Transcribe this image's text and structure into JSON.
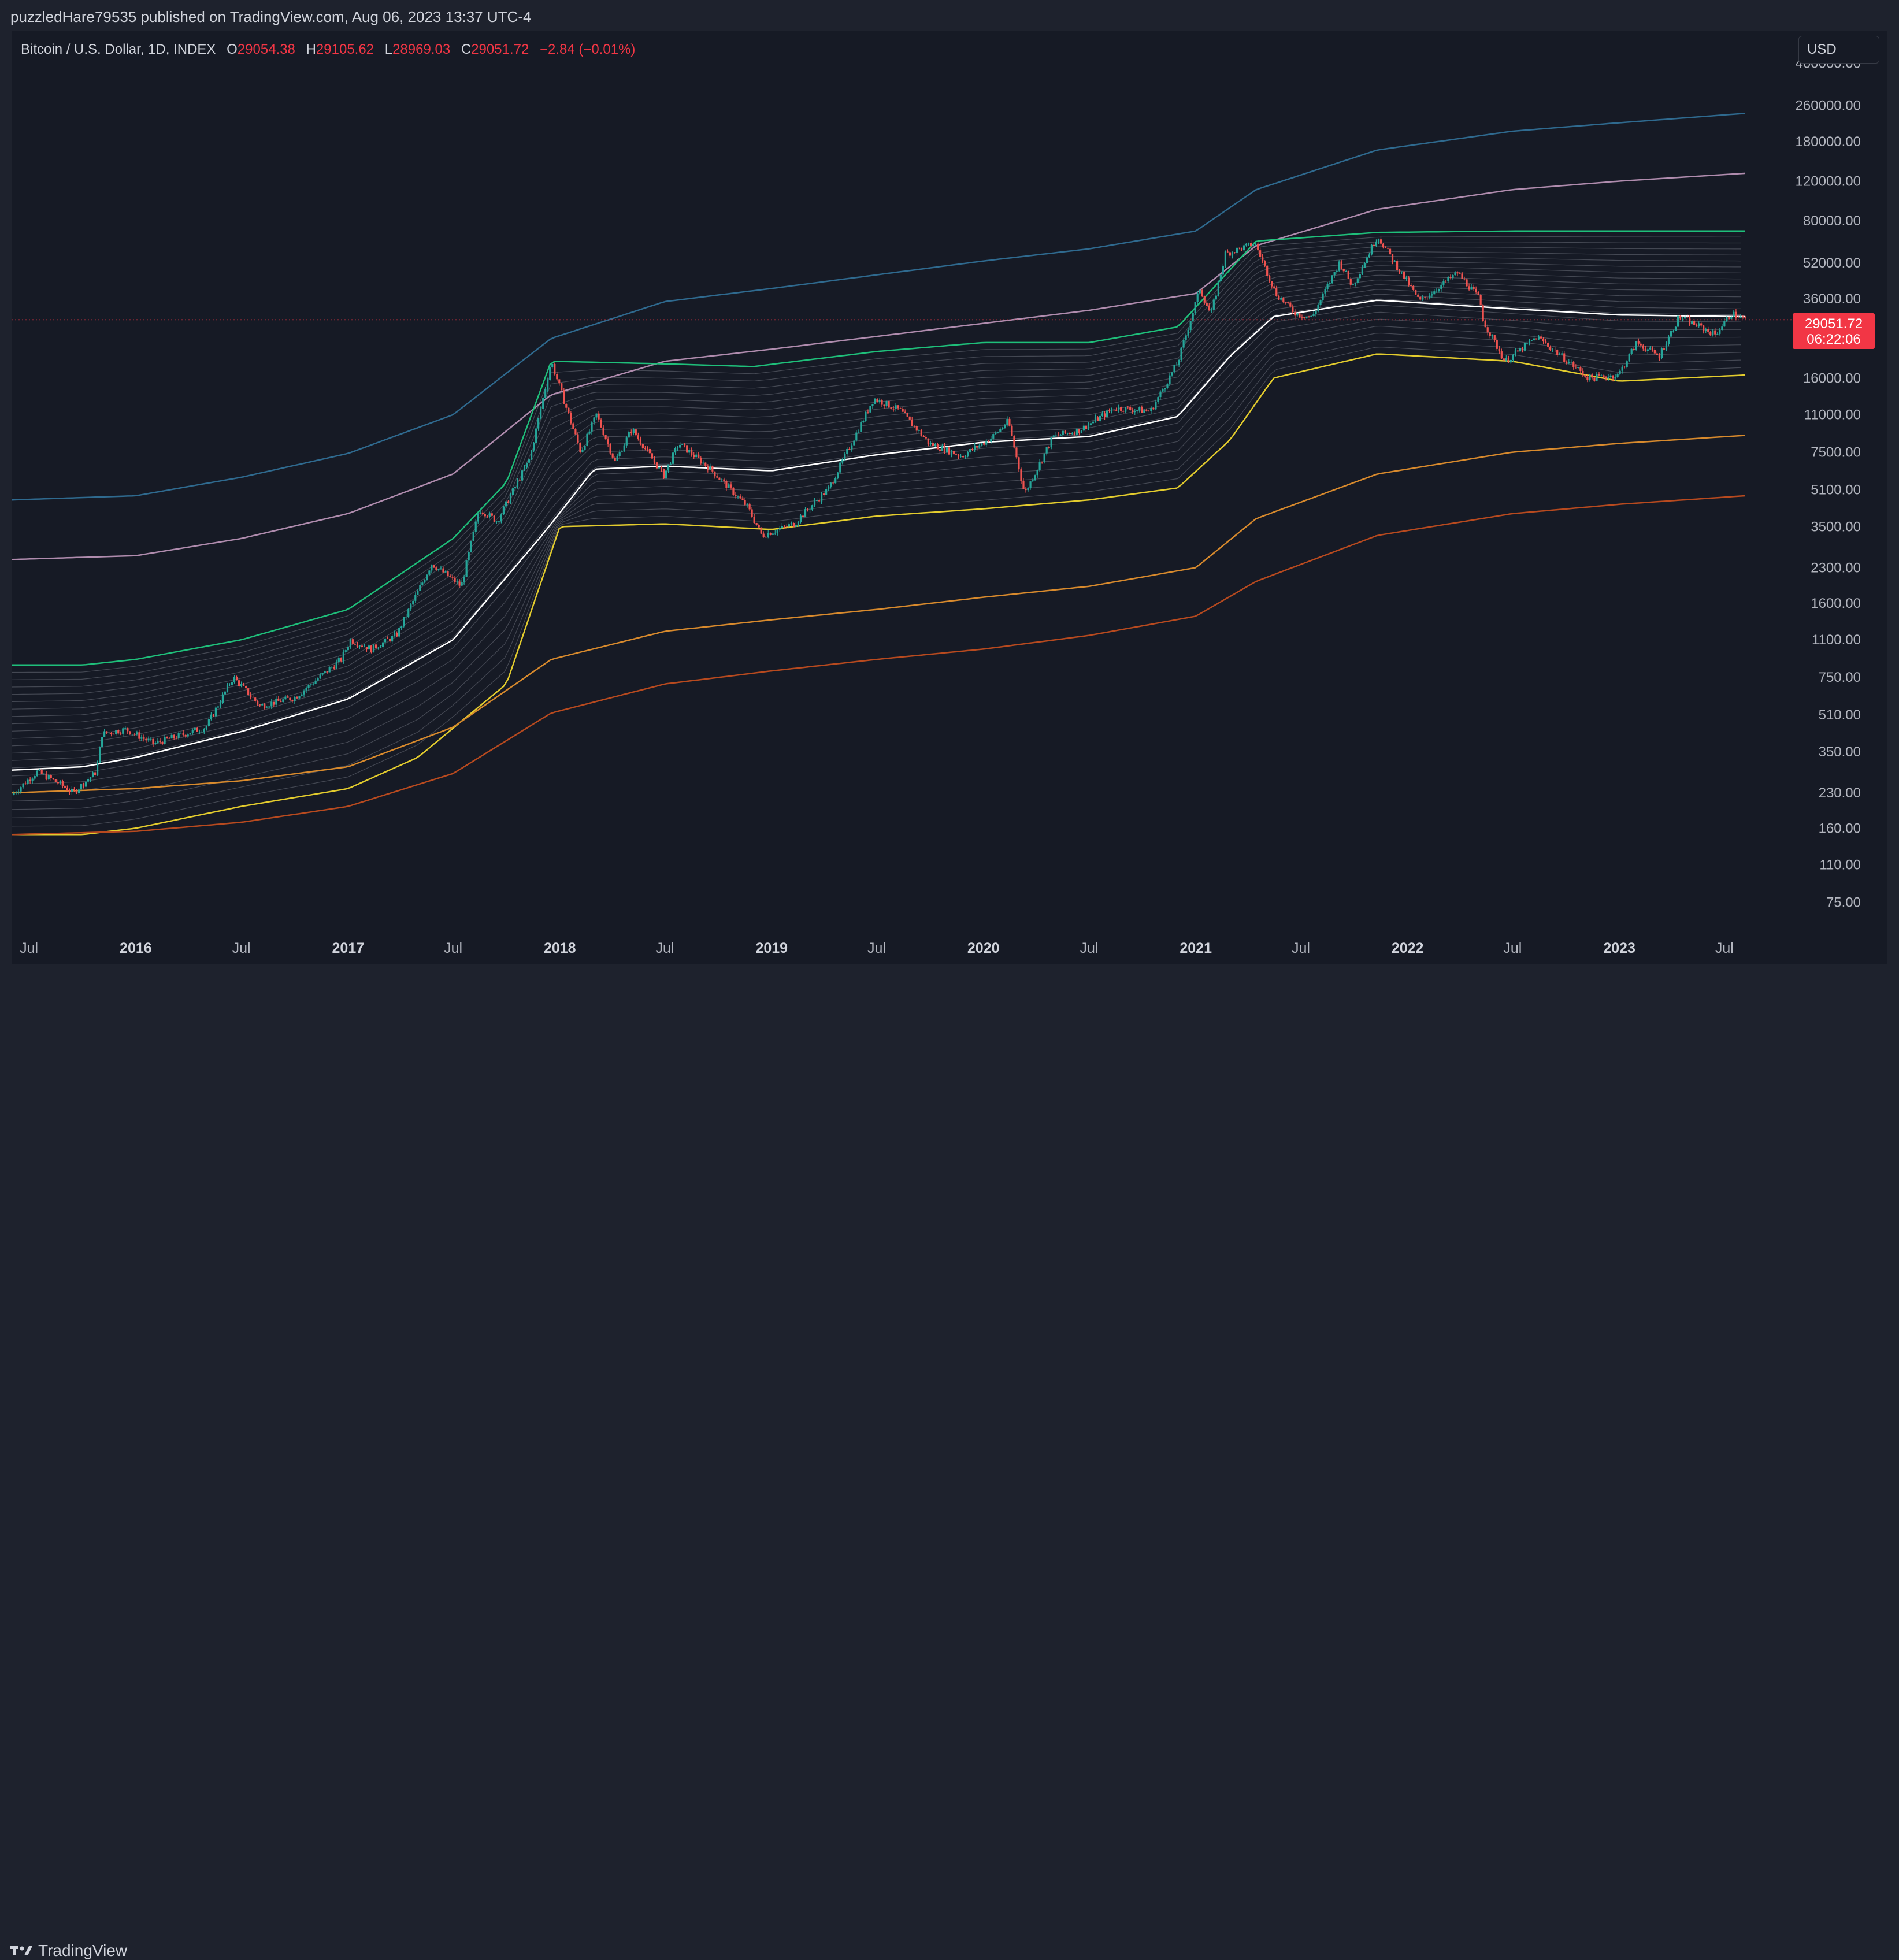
{
  "header": {
    "published_text": "puzzledHare79535 published on TradingView.com, Aug 06, 2023 13:37 UTC-4"
  },
  "legend": {
    "symbol": "Bitcoin / U.S. Dollar, 1D, INDEX",
    "open_key": "O",
    "open": "29054.38",
    "high_key": "H",
    "high": "29105.62",
    "low_key": "L",
    "low": "28969.03",
    "close_key": "C",
    "close": "29051.72",
    "change": "−2.84 (−0.01%)"
  },
  "currency_button": "USD",
  "price_label": {
    "price": "29051.72",
    "countdown": "06:22:06"
  },
  "footer": {
    "brand": "TradingView"
  },
  "colors": {
    "background": "#161a25",
    "up": "#26a69a",
    "down": "#ef5350",
    "price_line": "#f23645",
    "band_top": "#1fbf7a",
    "band_mid": "#ffffff",
    "band_low": "#e3cc2e",
    "line_blue": "#2f6a8f",
    "line_pink": "#b08cae",
    "line_orange": "#d88a2d",
    "line_red": "#b84a1f"
  },
  "chart_data": {
    "type": "line",
    "title": "",
    "yscale": "log",
    "ylim": [
      55,
      500000
    ],
    "x_range": [
      "2015-06-01",
      "2023-08-06"
    ],
    "y_ticks": [
      400000,
      260000,
      180000,
      120000,
      80000,
      52000,
      36000,
      16000,
      11000,
      7500,
      5100,
      3500,
      2300,
      1600,
      1100,
      750,
      510,
      350,
      230,
      160,
      110,
      75
    ],
    "y_tick_labels": [
      "400000.00",
      "260000.00",
      "180000.00",
      "120000.00",
      "80000.00",
      "52000.00",
      "36000.00",
      "16000.00",
      "11000.00",
      "7500.00",
      "5100.00",
      "3500.00",
      "2300.00",
      "1600.00",
      "1100.00",
      "750.00",
      "510.00",
      "350.00",
      "230.00",
      "160.00",
      "110.00",
      "75.00"
    ],
    "x_ticks": [
      {
        "date": "2015-07-01",
        "label": "Jul",
        "bold": false
      },
      {
        "date": "2016-01-01",
        "label": "2016",
        "bold": true
      },
      {
        "date": "2016-07-01",
        "label": "Jul",
        "bold": false
      },
      {
        "date": "2017-01-01",
        "label": "2017",
        "bold": true
      },
      {
        "date": "2017-07-01",
        "label": "Jul",
        "bold": false
      },
      {
        "date": "2018-01-01",
        "label": "2018",
        "bold": true
      },
      {
        "date": "2018-07-01",
        "label": "Jul",
        "bold": false
      },
      {
        "date": "2019-01-01",
        "label": "2019",
        "bold": true
      },
      {
        "date": "2019-07-01",
        "label": "Jul",
        "bold": false
      },
      {
        "date": "2020-01-01",
        "label": "2020",
        "bold": true
      },
      {
        "date": "2020-07-01",
        "label": "Jul",
        "bold": false
      },
      {
        "date": "2021-01-01",
        "label": "2021",
        "bold": true
      },
      {
        "date": "2021-07-01",
        "label": "Jul",
        "bold": false
      },
      {
        "date": "2022-01-01",
        "label": "2022",
        "bold": true
      },
      {
        "date": "2022-07-01",
        "label": "Jul",
        "bold": false
      },
      {
        "date": "2023-01-01",
        "label": "2023",
        "bold": true
      },
      {
        "date": "2023-07-01",
        "label": "Jul",
        "bold": false
      }
    ],
    "last_price": 29051.72,
    "price": {
      "x": [
        "2015-06-01",
        "2015-07-15",
        "2015-08-20",
        "2015-09-15",
        "2015-10-25",
        "2015-11-04",
        "2015-12-15",
        "2016-02-01",
        "2016-05-01",
        "2016-06-17",
        "2016-08-02",
        "2016-10-01",
        "2016-12-20",
        "2017-01-05",
        "2017-02-10",
        "2017-03-25",
        "2017-05-25",
        "2017-07-15",
        "2017-08-15",
        "2017-09-15",
        "2017-11-10",
        "2017-12-17",
        "2018-02-06",
        "2018-03-05",
        "2018-04-06",
        "2018-05-05",
        "2018-06-29",
        "2018-07-25",
        "2018-09-15",
        "2018-11-20",
        "2018-12-15",
        "2019-02-08",
        "2019-04-10",
        "2019-06-26",
        "2019-08-10",
        "2019-09-30",
        "2019-11-25",
        "2020-01-15",
        "2020-02-13",
        "2020-03-12",
        "2020-04-30",
        "2020-06-15",
        "2020-08-15",
        "2020-10-15",
        "2020-12-01",
        "2021-01-08",
        "2021-01-27",
        "2021-02-21",
        "2021-04-13",
        "2021-05-19",
        "2021-06-22",
        "2021-07-20",
        "2021-09-06",
        "2021-09-28",
        "2021-11-10",
        "2022-01-22",
        "2022-03-28",
        "2022-05-05",
        "2022-05-12",
        "2022-06-18",
        "2022-08-12",
        "2022-09-30",
        "2022-11-09",
        "2022-12-30",
        "2023-01-31",
        "2023-03-10",
        "2023-04-14",
        "2023-05-20",
        "2023-06-15",
        "2023-07-13",
        "2023-08-06"
      ],
      "y": [
        225,
        285,
        255,
        230,
        285,
        420,
        440,
        380,
        450,
        750,
        560,
        610,
        900,
        1100,
        1000,
        1150,
        2400,
        1900,
        4200,
        3700,
        7000,
        19000,
        7500,
        11000,
        6800,
        9500,
        5900,
        8200,
        6400,
        4300,
        3200,
        3600,
        5200,
        13000,
        11500,
        8200,
        7200,
        8700,
        10300,
        4900,
        8800,
        9400,
        11800,
        11400,
        18800,
        40000,
        30500,
        57000,
        63500,
        38000,
        31000,
        29700,
        52500,
        41000,
        68500,
        35000,
        47000,
        36000,
        28500,
        18900,
        24400,
        19400,
        16000,
        16500,
        23000,
        20000,
        30000,
        27000,
        25000,
        31000,
        29050
      ]
    },
    "series": [
      {
        "name": "",
        "color_key": "line_blue",
        "x": [
          "2015-06-01",
          "2016-01-01",
          "2016-07-01",
          "2017-01-01",
          "2017-07-01",
          "2017-12-17",
          "2018-07-01",
          "2019-01-01",
          "2019-07-01",
          "2020-01-01",
          "2020-07-01",
          "2021-01-01",
          "2021-04-15",
          "2021-11-10",
          "2022-07-01",
          "2023-01-01",
          "2023-08-06"
        ],
        "y": [
          4600,
          4800,
          5800,
          7400,
          11000,
          24000,
          35000,
          40000,
          46000,
          53000,
          60000,
          72000,
          110000,
          165000,
          200000,
          218000,
          240000
        ]
      },
      {
        "name": "",
        "color_key": "line_pink",
        "x": [
          "2015-06-01",
          "2016-01-01",
          "2016-07-01",
          "2017-01-01",
          "2017-07-01",
          "2017-12-17",
          "2018-07-01",
          "2019-01-01",
          "2019-07-01",
          "2020-01-01",
          "2020-07-01",
          "2021-01-01",
          "2021-04-15",
          "2021-11-10",
          "2022-07-01",
          "2023-01-01",
          "2023-08-06"
        ],
        "y": [
          2500,
          2600,
          3100,
          4000,
          6000,
          13500,
          19000,
          21500,
          24500,
          28000,
          32000,
          38000,
          62000,
          90000,
          110000,
          120000,
          130000
        ]
      },
      {
        "name": "",
        "color_key": "band_top",
        "x": [
          "2015-06-01",
          "2015-10-01",
          "2016-01-01",
          "2016-07-01",
          "2017-01-01",
          "2017-07-01",
          "2017-10-01",
          "2017-12-17",
          "2018-07-01",
          "2018-12-01",
          "2019-07-01",
          "2020-01-01",
          "2020-07-01",
          "2020-12-01",
          "2021-04-15",
          "2021-11-10",
          "2022-07-01",
          "2023-01-01",
          "2023-08-06"
        ],
        "y": [
          850,
          850,
          900,
          1100,
          1500,
          3100,
          5500,
          19000,
          18500,
          18000,
          21000,
          23000,
          23000,
          27000,
          65000,
          71000,
          72000,
          72000,
          72000
        ]
      },
      {
        "name": "",
        "color_key": "band_mid",
        "x": [
          "2015-06-01",
          "2015-10-01",
          "2016-01-01",
          "2016-07-01",
          "2017-01-01",
          "2017-07-01",
          "2017-12-01",
          "2018-03-01",
          "2018-07-01",
          "2019-01-01",
          "2019-07-01",
          "2020-01-01",
          "2020-07-01",
          "2020-12-01",
          "2021-03-01",
          "2021-05-15",
          "2021-11-10",
          "2022-07-01",
          "2023-01-01",
          "2023-08-06"
        ],
        "y": [
          290,
          300,
          330,
          430,
          600,
          1100,
          3200,
          6300,
          6500,
          6200,
          7300,
          8300,
          8800,
          10800,
          20000,
          30000,
          35500,
          32500,
          30500,
          30000
        ]
      },
      {
        "name": "",
        "color_key": "band_low",
        "x": [
          "2015-06-01",
          "2015-10-01",
          "2016-01-01",
          "2016-07-01",
          "2017-01-01",
          "2017-05-01",
          "2017-10-01",
          "2018-01-01",
          "2018-07-01",
          "2019-01-01",
          "2019-07-01",
          "2020-01-01",
          "2020-07-01",
          "2020-12-01",
          "2021-03-01",
          "2021-05-15",
          "2021-11-10",
          "2022-07-01",
          "2023-01-01",
          "2023-08-06"
        ],
        "y": [
          150,
          150,
          160,
          200,
          240,
          330,
          700,
          3500,
          3600,
          3400,
          3900,
          4200,
          4600,
          5200,
          8500,
          16000,
          20500,
          19000,
          15500,
          16500
        ]
      },
      {
        "name": "",
        "color_key": "line_orange",
        "x": [
          "2015-06-01",
          "2016-01-01",
          "2016-07-01",
          "2017-01-01",
          "2017-07-01",
          "2017-12-17",
          "2018-07-01",
          "2019-01-01",
          "2019-07-01",
          "2020-01-01",
          "2020-07-01",
          "2021-01-01",
          "2021-04-15",
          "2021-11-10",
          "2022-07-01",
          "2023-01-01",
          "2023-08-06"
        ],
        "y": [
          230,
          240,
          260,
          300,
          450,
          900,
          1200,
          1350,
          1500,
          1700,
          1900,
          2300,
          3800,
          6000,
          7500,
          8200,
          8900
        ]
      },
      {
        "name": "",
        "color_key": "line_red",
        "x": [
          "2015-06-01",
          "2016-01-01",
          "2016-07-01",
          "2017-01-01",
          "2017-07-01",
          "2017-12-17",
          "2018-07-01",
          "2019-01-01",
          "2019-07-01",
          "2020-01-01",
          "2020-07-01",
          "2021-01-01",
          "2021-04-15",
          "2021-11-10",
          "2022-07-01",
          "2023-01-01",
          "2023-08-06"
        ],
        "y": [
          150,
          155,
          170,
          200,
          280,
          520,
          700,
          800,
          900,
          1000,
          1150,
          1400,
          2000,
          3200,
          4000,
          4400,
          4800
        ]
      }
    ],
    "xlabel": "",
    "ylabel": "",
    "grid": false,
    "legend": "none"
  }
}
